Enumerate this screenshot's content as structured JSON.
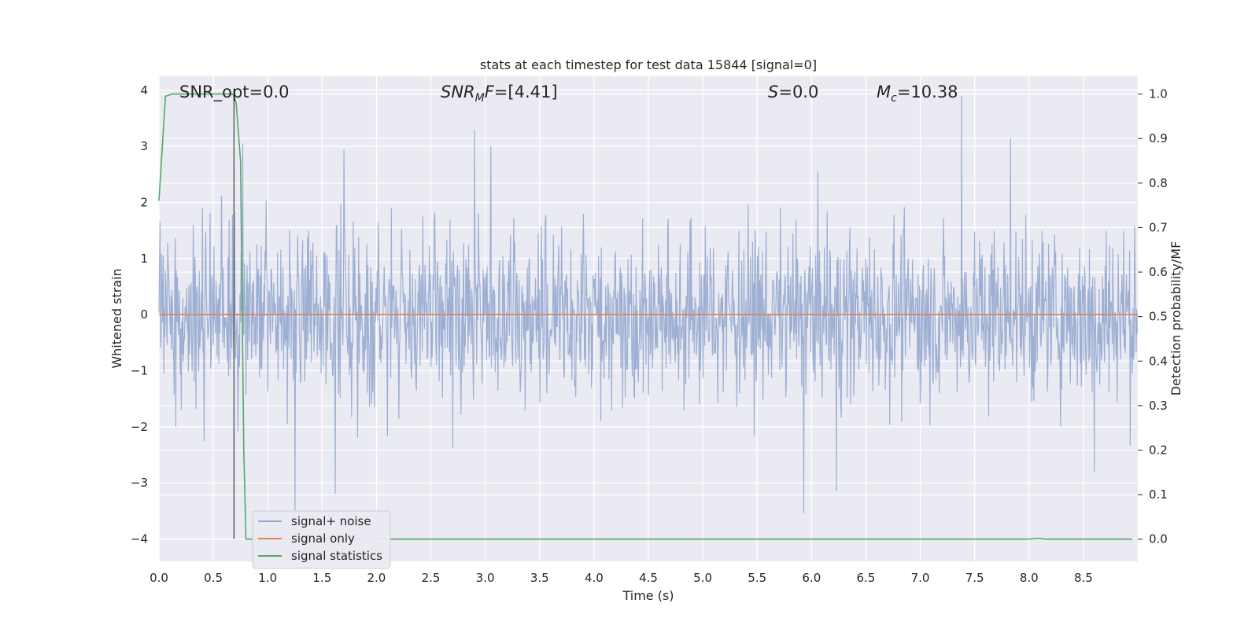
{
  "chart_data": {
    "type": "line",
    "title": "stats at each timestep for test data 15844 [signal=0]",
    "xlabel": "Time (s)",
    "ylabel": "Whitened strain",
    "y2label": "Detection probability/MF",
    "xlim": [
      0.0,
      9.0
    ],
    "ylim": [
      -4.4,
      4.25
    ],
    "y2lim": [
      -0.05,
      1.04
    ],
    "xticks": [
      "0.0",
      "0.5",
      "1.0",
      "1.5",
      "2.0",
      "2.5",
      "3.0",
      "3.5",
      "4.0",
      "4.5",
      "5.0",
      "5.5",
      "6.0",
      "6.5",
      "7.0",
      "7.5",
      "8.0",
      "8.5"
    ],
    "yticks": [
      "4",
      "3",
      "2",
      "1",
      "0",
      "−1",
      "−2",
      "−3",
      "−4"
    ],
    "y2ticks": [
      "1.0",
      "0.9",
      "0.8",
      "0.7",
      "0.6",
      "0.5",
      "0.4",
      "0.3",
      "0.2",
      "0.1",
      "0.0"
    ],
    "grid": true,
    "legend_position": "lower-left",
    "annotations": [
      {
        "text": "SNR_opt=0.0",
        "x": 0.2,
        "y": 4.0
      },
      {
        "text": "SNR_MF=[4.41]",
        "x": 2.6,
        "y": 4.0
      },
      {
        "text": "S=0.0",
        "x": 5.6,
        "y": 4.0
      },
      {
        "text": "M_c=10.38",
        "x": 6.6,
        "y": 4.0
      }
    ],
    "marker_line_x": 0.69,
    "series": [
      {
        "name": "signal+ noise",
        "axis": "left",
        "color": "#8fa5ce",
        "noise_sigma": 0.75,
        "n_points": 1800,
        "peaks": [
          {
            "x": 1.25,
            "y": -3.5
          },
          {
            "x": 1.62,
            "y": -3.2
          },
          {
            "x": 2.9,
            "y": 3.3
          },
          {
            "x": 5.93,
            "y": -3.55
          },
          {
            "x": 6.23,
            "y": -3.15
          },
          {
            "x": 7.38,
            "y": 3.9
          },
          {
            "x": 7.83,
            "y": 3.15
          },
          {
            "x": 8.6,
            "y": -2.8
          },
          {
            "x": 0.77,
            "y": 3.05
          },
          {
            "x": 1.7,
            "y": 2.95
          },
          {
            "x": 3.05,
            "y": 3.0
          }
        ]
      },
      {
        "name": "signal only",
        "axis": "left",
        "color": "#dd8452",
        "y": [
          [
            0.0,
            0.0
          ],
          [
            9.0,
            0.0
          ]
        ]
      },
      {
        "name": "signal statistics",
        "axis": "right",
        "color": "#55a868",
        "points": [
          [
            0.0,
            0.76
          ],
          [
            0.06,
            0.995
          ],
          [
            0.12,
            1.0
          ],
          [
            0.3,
            1.0
          ],
          [
            0.5,
            1.0
          ],
          [
            0.68,
            1.0
          ],
          [
            0.71,
            0.98
          ],
          [
            0.75,
            0.85
          ],
          [
            0.78,
            0.2
          ],
          [
            0.8,
            0.0
          ],
          [
            1.2,
            0.0
          ],
          [
            4.0,
            0.0
          ],
          [
            8.0,
            0.0
          ],
          [
            8.08,
            0.002
          ],
          [
            8.15,
            0.0
          ],
          [
            8.95,
            0.0
          ]
        ]
      }
    ]
  }
}
